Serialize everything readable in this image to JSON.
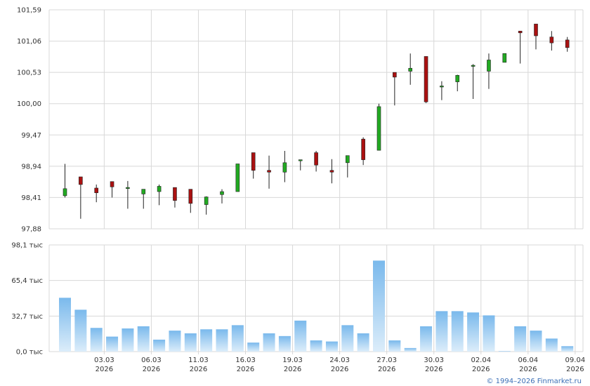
{
  "chart_data": [
    {
      "type": "candlestick",
      "y_ticks": [
        "101,59",
        "101,06",
        "100,53",
        "100,00",
        "99,47",
        "98,94",
        "98,41",
        "97,88"
      ],
      "ylim": [
        97.88,
        101.59
      ],
      "grid": true,
      "colors": {
        "up": "#22aa22",
        "down": "#aa1111",
        "wick": "#222222"
      },
      "candles": [
        {
          "open": 98.44,
          "high": 98.98,
          "low": 98.41,
          "close": 98.56
        },
        {
          "open": 98.76,
          "high": 98.76,
          "low": 98.05,
          "close": 98.63
        },
        {
          "open": 98.57,
          "high": 98.63,
          "low": 98.33,
          "close": 98.49
        },
        {
          "open": 98.68,
          "high": 98.68,
          "low": 98.41,
          "close": 98.59
        },
        {
          "open": 98.58,
          "high": 98.69,
          "low": 98.22,
          "close": 98.58
        },
        {
          "open": 98.47,
          "high": 98.55,
          "low": 98.22,
          "close": 98.55
        },
        {
          "open": 98.51,
          "high": 98.63,
          "low": 98.28,
          "close": 98.6
        },
        {
          "open": 98.58,
          "high": 98.58,
          "low": 98.24,
          "close": 98.36
        },
        {
          "open": 98.55,
          "high": 98.55,
          "low": 98.15,
          "close": 98.31
        },
        {
          "open": 98.29,
          "high": 98.43,
          "low": 98.12,
          "close": 98.42
        },
        {
          "open": 98.46,
          "high": 98.55,
          "low": 98.31,
          "close": 98.51
        },
        {
          "open": 98.51,
          "high": 98.98,
          "low": 98.51,
          "close": 98.98
        },
        {
          "open": 99.17,
          "high": 99.17,
          "low": 98.73,
          "close": 98.87
        },
        {
          "open": 98.87,
          "high": 99.12,
          "low": 98.56,
          "close": 98.84
        },
        {
          "open": 98.84,
          "high": 99.2,
          "low": 98.67,
          "close": 99.0
        },
        {
          "open": 99.05,
          "high": 99.05,
          "low": 98.87,
          "close": 99.05
        },
        {
          "open": 99.17,
          "high": 99.2,
          "low": 98.85,
          "close": 98.96
        },
        {
          "open": 98.87,
          "high": 99.06,
          "low": 98.65,
          "close": 98.84
        },
        {
          "open": 99.0,
          "high": 99.12,
          "low": 98.75,
          "close": 99.12
        },
        {
          "open": 99.4,
          "high": 99.43,
          "low": 98.96,
          "close": 99.05
        },
        {
          "open": 99.21,
          "high": 100.0,
          "low": 99.21,
          "close": 99.95
        },
        {
          "open": 100.53,
          "high": 100.53,
          "low": 99.97,
          "close": 100.45
        },
        {
          "open": 100.55,
          "high": 100.85,
          "low": 100.32,
          "close": 100.6
        },
        {
          "open": 100.8,
          "high": 100.8,
          "low": 100.01,
          "close": 100.03
        },
        {
          "open": 100.3,
          "high": 100.38,
          "low": 100.06,
          "close": 100.3
        },
        {
          "open": 100.37,
          "high": 100.49,
          "low": 100.21,
          "close": 100.48
        },
        {
          "open": 100.65,
          "high": 100.67,
          "low": 100.08,
          "close": 100.65
        },
        {
          "open": 100.55,
          "high": 100.85,
          "low": 100.25,
          "close": 100.74
        },
        {
          "open": 100.7,
          "high": 100.85,
          "low": 100.7,
          "close": 100.85
        },
        {
          "open": 101.23,
          "high": 101.23,
          "low": 100.68,
          "close": 101.2
        },
        {
          "open": 101.35,
          "high": 101.35,
          "low": 100.92,
          "close": 101.15
        },
        {
          "open": 101.13,
          "high": 101.23,
          "low": 100.9,
          "close": 101.03
        },
        {
          "open": 101.08,
          "high": 101.13,
          "low": 100.88,
          "close": 100.95
        }
      ]
    },
    {
      "type": "bar",
      "y_ticks": [
        "98,1 тыс",
        "65,4 тыс",
        "32,7 тыс",
        "0,0 тыс"
      ],
      "ylim": [
        0,
        98.1
      ],
      "grid": true,
      "bar_color": "#7ab9ec",
      "values": [
        49.5,
        38.5,
        21.8,
        13.8,
        21.3,
        23.3,
        11.0,
        19.3,
        16.8,
        20.5,
        20.5,
        24.3,
        8.3,
        16.8,
        14.3,
        28.5,
        10.3,
        9.3,
        24.3,
        16.8,
        83.7,
        10.3,
        3.3,
        23.3,
        37.2,
        37.2,
        36.0,
        33.3,
        0.5,
        23.3,
        19.3,
        12.0,
        5.0
      ]
    }
  ],
  "x_labels": [
    {
      "index": 2.5,
      "day": "03.03",
      "year": "2026"
    },
    {
      "index": 5.5,
      "day": "06.03",
      "year": "2026"
    },
    {
      "index": 8.5,
      "day": "11.03",
      "year": "2026"
    },
    {
      "index": 11.5,
      "day": "16.03",
      "year": "2026"
    },
    {
      "index": 14.5,
      "day": "19.03",
      "year": "2026"
    },
    {
      "index": 17.5,
      "day": "24.03",
      "year": "2026"
    },
    {
      "index": 20.5,
      "day": "27.03",
      "year": "2026"
    },
    {
      "index": 23.5,
      "day": "30.03",
      "year": "2026"
    },
    {
      "index": 26.5,
      "day": "02.04",
      "year": "2026"
    },
    {
      "index": 29.5,
      "day": "06.04",
      "year": "2026"
    },
    {
      "index": 32.5,
      "day": "09.04",
      "year": "2026"
    }
  ],
  "credit": "© 1994–2026 Finmarket.ru"
}
